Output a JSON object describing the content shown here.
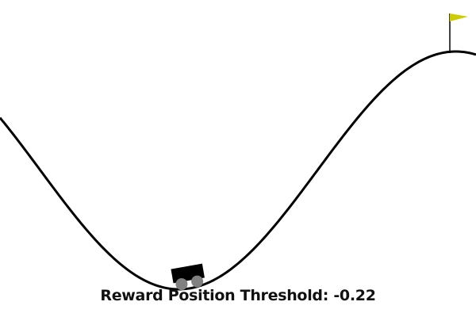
{
  "environment": "MountainCar",
  "caption": {
    "label": "Reward Position Threshold:",
    "value": "-0.22"
  },
  "colors": {
    "background": "#ffffff",
    "track": "#000000",
    "car_body": "#000000",
    "wheels": "#808080",
    "flag": "#cccc00",
    "flagpole": "#000000"
  },
  "icons": [
    "car-icon",
    "flag-icon"
  ]
}
